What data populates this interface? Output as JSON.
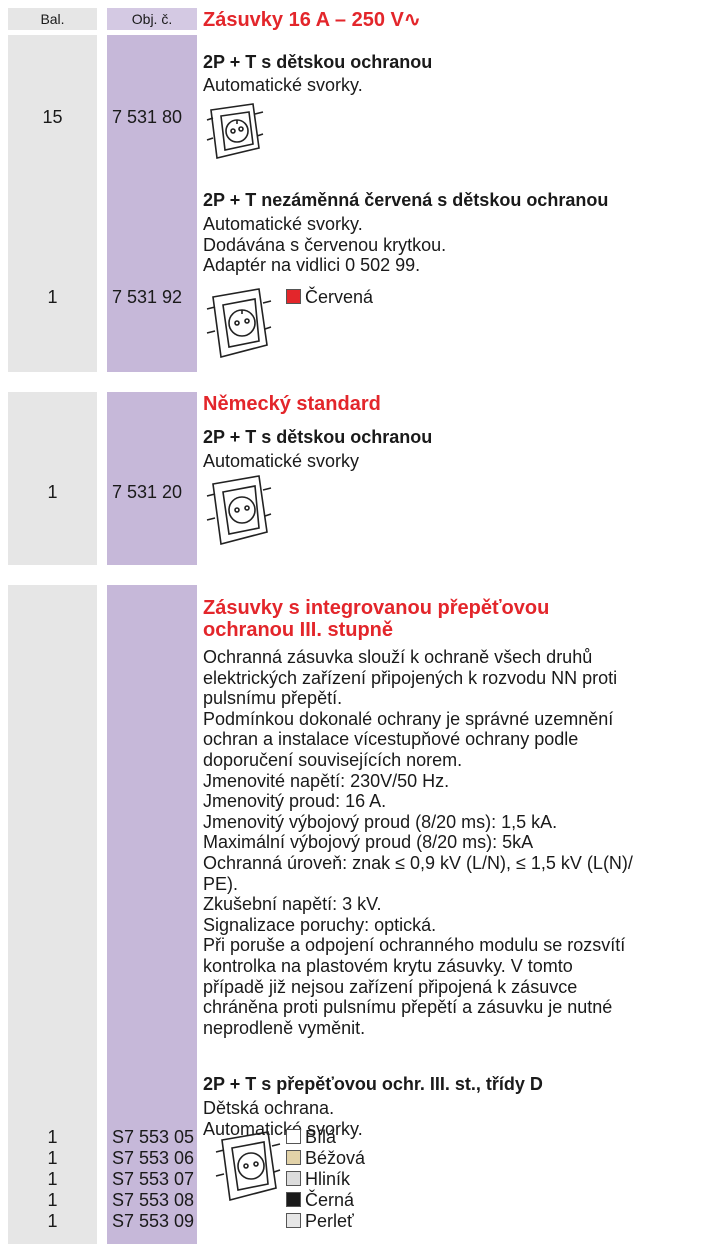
{
  "header": {
    "bal": "Bal.",
    "obj": "Obj. č."
  },
  "sections": [
    {
      "title": "Zásuvky 16 A – 250 V∿",
      "items": [
        {
          "name": "2P + T s dětskou ochranou",
          "description": [
            "Automatické svorky."
          ],
          "bal": "15",
          "obj": "7 531 80"
        },
        {
          "name": "2P + T nezáměnná červená s dětskou ochranou",
          "description": [
            "Automatické svorky.",
            "Dodávána s červenou krytkou.",
            "Adaptér na vidlici 0 502 99."
          ],
          "bal": "1",
          "obj": "7 531 92",
          "colors": [
            {
              "label": "Červená",
              "color": "#e3262b"
            }
          ]
        }
      ]
    },
    {
      "title": "Německý standard",
      "items": [
        {
          "name": "2P + T s dětskou ochranou",
          "description": [
            "Automatické svorky"
          ],
          "bal": "1",
          "obj": "7 531 20"
        }
      ]
    },
    {
      "title": [
        "Zásuvky s integrovanou přepěťovou",
        "ochranou III. stupně"
      ],
      "intro": [
        "Ochranná zásuvka slouží k ochraně všech druhů",
        "elektrických zařízení připojených k rozvodu NN proti",
        "pulsnímu přepětí.",
        "Podmínkou dokonalé ochrany je správné uzemnění",
        "ochran a instalace vícestupňové ochrany podle",
        "doporučení souvisejících norem.",
        "Jmenovité napětí: 230V/50 Hz.",
        "Jmenovitý proud: 16 A.",
        "Jmenovitý výbojový proud (8/20 ms): 1,5 kA.",
        "Maximální výbojový proud (8/20 ms): 5kA",
        "Ochranná úroveň: znak ≤ 0,9 kV (L/N), ≤ 1,5 kV (L(N)/",
        "PE).",
        "Zkušební napětí: 3 kV.",
        "Signalizace poruchy: optická.",
        "Při poruše a odpojení ochranného modulu se rozsvítí",
        "kontrolka na plastovém krytu zásuvky. V tomto",
        "případě již nejsou zařízení připojená k zásuvce",
        "chráněna proti pulsnímu přepětí a zásuvku je nutné",
        "neprodleně vyměnit."
      ],
      "items": [
        {
          "name": "2P + T s přepěťovou ochr. III. st., třídy D",
          "description": [
            "Dětská ochrana.",
            "Automatické svorky."
          ],
          "variants": [
            {
              "bal": "1",
              "obj": "S7 553 05",
              "label": "Bílá",
              "color": "#ffffff"
            },
            {
              "bal": "1",
              "obj": "S7 553 06",
              "label": "Béžová",
              "color": "#e2d2a8"
            },
            {
              "bal": "1",
              "obj": "S7 553 07",
              "label": "Hliník",
              "color": "#dcdcdc"
            },
            {
              "bal": "1",
              "obj": "S7 553 08",
              "label": "Černá",
              "color": "#1a1a1a"
            },
            {
              "bal": "1",
              "obj": "S7 553 09",
              "label": "Perleť",
              "color": "#e6e6e6"
            }
          ]
        }
      ]
    }
  ]
}
